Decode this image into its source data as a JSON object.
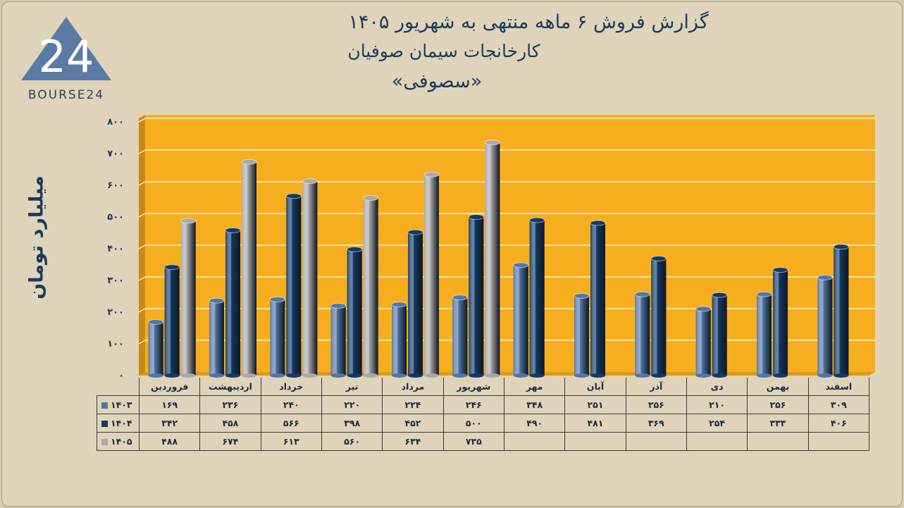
{
  "title_line1": "گزارش  فروش ۶ ماهه منتهی به شهریور ۱۴۰۵",
  "title_line2": "کارخانجات سیمان صوفیان",
  "title_line3": "«سصوفی»",
  "logo_number": "24",
  "logo_text": "BOURSE24",
  "colors": {
    "background": "#dfd4ba",
    "plot": "#f7ae1e",
    "s1403": "#5176a8",
    "s1404": "#123a68",
    "s1405": "#a9a9aa",
    "title": "#1b3a5e"
  },
  "chart_data": {
    "type": "bar",
    "ylabel": "میلیارد تومان",
    "ylim": [
      0,
      800
    ],
    "yticks": [
      0,
      100,
      200,
      300,
      400,
      500,
      600,
      700,
      800
    ],
    "ytick_labels": [
      "۰",
      "۱۰۰",
      "۲۰۰",
      "۳۰۰",
      "۴۰۰",
      "۵۰۰",
      "۶۰۰",
      "۷۰۰",
      "۸۰۰"
    ],
    "grid": true,
    "categories": [
      "فروردین",
      "اردیبهشت",
      "خرداد",
      "تیر",
      "مرداد",
      "شهریور",
      "مهر",
      "آبان",
      "آذر",
      "دی",
      "بهمن",
      "اسفند"
    ],
    "series": [
      {
        "name": "۱۴۰۳",
        "values": [
          169,
          236,
          240,
          220,
          224,
          246,
          348,
          251,
          256,
          210,
          256,
          309
        ],
        "labels": [
          "۱۶۹",
          "۲۳۶",
          "۲۴۰",
          "۲۲۰",
          "۲۲۴",
          "۲۴۶",
          "۳۴۸",
          "۲۵۱",
          "۲۵۶",
          "۲۱۰",
          "۲۵۶",
          "۳۰۹"
        ]
      },
      {
        "name": "۱۴۰۴",
        "values": [
          342,
          458,
          566,
          398,
          452,
          500,
          490,
          481,
          369,
          254,
          333,
          406
        ],
        "labels": [
          "۳۴۲",
          "۴۵۸",
          "۵۶۶",
          "۳۹۸",
          "۴۵۲",
          "۵۰۰",
          "۴۹۰",
          "۴۸۱",
          "۳۶۹",
          "۲۵۴",
          "۳۳۳",
          "۴۰۶"
        ]
      },
      {
        "name": "۱۴۰۵",
        "values": [
          488,
          674,
          613,
          560,
          634,
          735,
          null,
          null,
          null,
          null,
          null,
          null
        ],
        "labels": [
          "۴۸۸",
          "۶۷۴",
          "۶۱۳",
          "۵۶۰",
          "۶۳۴",
          "۷۳۵",
          "",
          "",
          "",
          "",
          "",
          ""
        ]
      }
    ]
  }
}
